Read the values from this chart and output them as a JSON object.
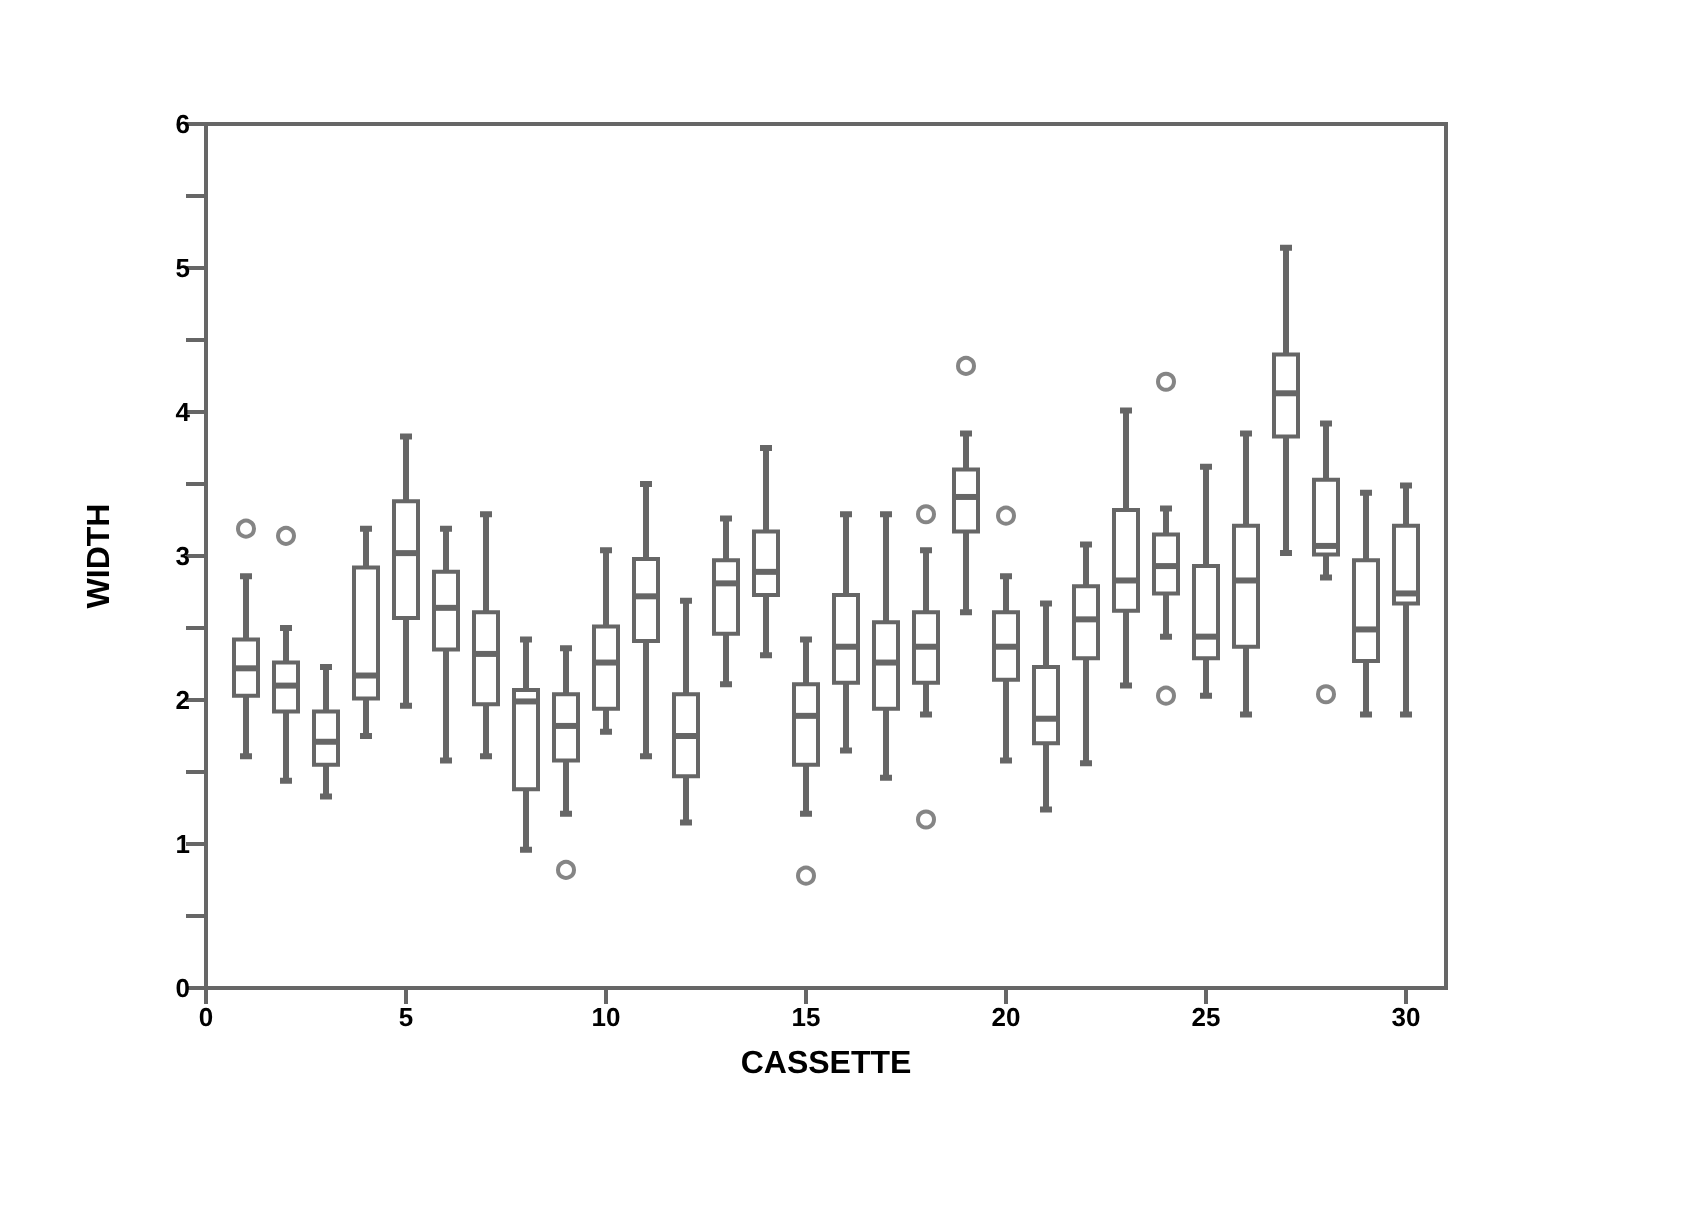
{
  "chart_data": {
    "type": "box",
    "xlabel": "CASSETTE",
    "ylabel": "WIDTH",
    "x": [
      1,
      2,
      3,
      4,
      5,
      6,
      7,
      8,
      9,
      10,
      11,
      12,
      13,
      14,
      15,
      16,
      17,
      18,
      19,
      20,
      21,
      22,
      23,
      24,
      25,
      26,
      27,
      28,
      29,
      30
    ],
    "xlim": [
      0,
      31
    ],
    "xticks": [
      0,
      5,
      10,
      15,
      20,
      25,
      30
    ],
    "ylim": [
      0,
      6
    ],
    "yticks": [
      0,
      {
        "value": 0.5,
        "label": null
      },
      1,
      {
        "value": 1.5,
        "label": null
      },
      2,
      {
        "value": 2.5,
        "label": null
      },
      3,
      {
        "value": 3.5,
        "label": null
      },
      4,
      {
        "value": 4.5,
        "label": null
      },
      5,
      {
        "value": 5.5,
        "label": null
      },
      6
    ],
    "grid": false,
    "color": "#666666",
    "boxes": [
      {
        "low": 1.61,
        "q1": 2.03,
        "median": 2.22,
        "q3": 2.42,
        "high": 2.86,
        "outliers": [
          3.19
        ]
      },
      {
        "low": 1.44,
        "q1": 1.92,
        "median": 2.1,
        "q3": 2.26,
        "high": 2.5,
        "outliers": [
          3.14
        ]
      },
      {
        "low": 1.33,
        "q1": 1.55,
        "median": 1.71,
        "q3": 1.92,
        "high": 2.23
      },
      {
        "low": 1.75,
        "q1": 2.01,
        "median": 2.17,
        "q3": 2.92,
        "high": 3.19
      },
      {
        "low": 1.96,
        "q1": 2.57,
        "median": 3.02,
        "q3": 3.38,
        "high": 3.83
      },
      {
        "low": 1.58,
        "q1": 2.35,
        "median": 2.64,
        "q3": 2.89,
        "high": 3.19
      },
      {
        "low": 1.61,
        "q1": 1.97,
        "median": 2.32,
        "q3": 2.61,
        "high": 3.29
      },
      {
        "low": 0.96,
        "q1": 1.38,
        "median": 1.99,
        "q3": 2.07,
        "high": 2.42
      },
      {
        "low": 1.21,
        "q1": 1.58,
        "median": 1.82,
        "q3": 2.04,
        "high": 2.36,
        "outliers": [
          0.82
        ]
      },
      {
        "low": 1.78,
        "q1": 1.94,
        "median": 2.26,
        "q3": 2.51,
        "high": 3.04
      },
      {
        "low": 1.61,
        "q1": 2.41,
        "median": 2.72,
        "q3": 2.98,
        "high": 3.5
      },
      {
        "low": 1.15,
        "q1": 1.47,
        "median": 1.75,
        "q3": 2.04,
        "high": 2.69
      },
      {
        "low": 2.11,
        "q1": 2.46,
        "median": 2.81,
        "q3": 2.97,
        "high": 3.26
      },
      {
        "low": 2.31,
        "q1": 2.73,
        "median": 2.89,
        "q3": 3.17,
        "high": 3.75
      },
      {
        "low": 1.21,
        "q1": 1.55,
        "median": 1.89,
        "q3": 2.11,
        "high": 2.42,
        "outliers": [
          0.78
        ]
      },
      {
        "low": 1.65,
        "q1": 2.12,
        "median": 2.37,
        "q3": 2.73,
        "high": 3.29
      },
      {
        "low": 1.46,
        "q1": 1.94,
        "median": 2.26,
        "q3": 2.54,
        "high": 3.29
      },
      {
        "low": 1.9,
        "q1": 2.12,
        "median": 2.37,
        "q3": 2.61,
        "high": 3.04,
        "outliers": [
          3.29,
          1.17
        ]
      },
      {
        "low": 2.61,
        "q1": 3.17,
        "median": 3.41,
        "q3": 3.6,
        "high": 3.85,
        "outliers": [
          4.32
        ]
      },
      {
        "low": 1.58,
        "q1": 2.14,
        "median": 2.37,
        "q3": 2.61,
        "high": 2.86,
        "outliers": [
          3.28
        ]
      },
      {
        "low": 1.24,
        "q1": 1.7,
        "median": 1.87,
        "q3": 2.23,
        "high": 2.67
      },
      {
        "low": 1.56,
        "q1": 2.29,
        "median": 2.56,
        "q3": 2.79,
        "high": 3.08
      },
      {
        "low": 2.1,
        "q1": 2.62,
        "median": 2.83,
        "q3": 3.32,
        "high": 4.01
      },
      {
        "low": 2.44,
        "q1": 2.74,
        "median": 2.93,
        "q3": 3.15,
        "high": 3.33,
        "outliers": [
          4.21,
          2.03
        ]
      },
      {
        "low": 2.03,
        "q1": 2.29,
        "median": 2.44,
        "q3": 2.93,
        "high": 3.62
      },
      {
        "low": 1.9,
        "q1": 2.37,
        "median": 2.83,
        "q3": 3.21,
        "high": 3.85
      },
      {
        "low": 3.02,
        "q1": 3.83,
        "median": 4.13,
        "q3": 4.4,
        "high": 5.14
      },
      {
        "low": 2.85,
        "q1": 3.01,
        "median": 3.07,
        "q3": 3.53,
        "high": 3.92,
        "outliers": [
          2.04
        ]
      },
      {
        "low": 1.9,
        "q1": 2.27,
        "median": 2.49,
        "q3": 2.97,
        "high": 3.44
      },
      {
        "low": 1.9,
        "q1": 2.67,
        "median": 2.74,
        "q3": 3.21,
        "high": 3.49
      }
    ]
  }
}
